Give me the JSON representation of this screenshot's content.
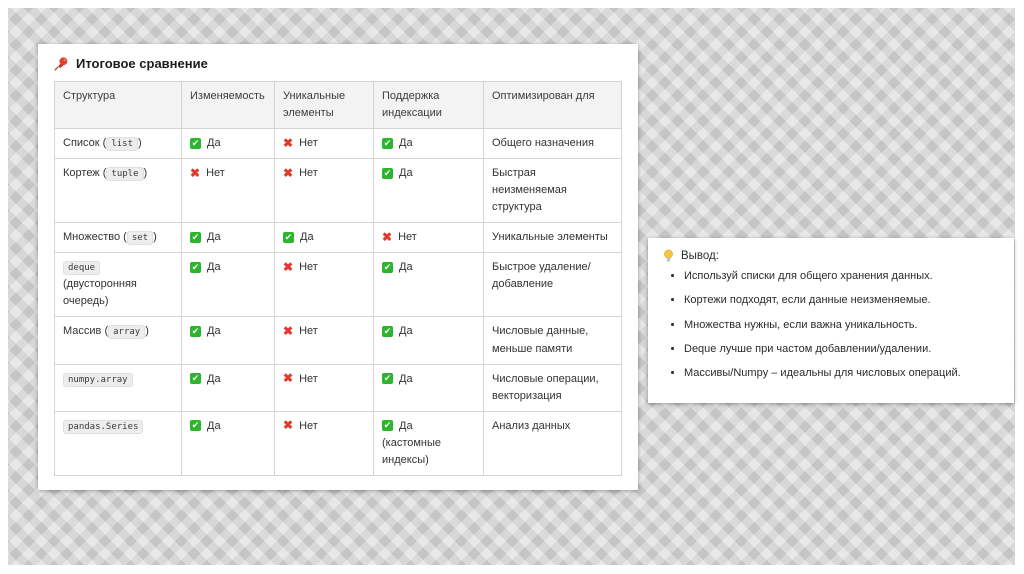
{
  "slide": {
    "colors": {
      "check_green": "#2eb52e",
      "cross_red": "#e03a2f",
      "header_bg": "#f3f3f3"
    },
    "icons": {
      "title_icon": "pushpin-icon",
      "conclusion_icon": "lightbulb-icon"
    },
    "title": "Итоговое сравнение",
    "table": {
      "columns": [
        "Структура",
        "Изменяемость",
        "Уникальные элементы",
        "Поддержка индексации",
        "Оптимизирован для"
      ],
      "rows": [
        {
          "structure": {
            "text": "Список",
            "code": "list",
            "paren": true,
            "note": ""
          },
          "mutable": {
            "value": "yes",
            "label": "Да"
          },
          "unique": {
            "value": "no",
            "label": "Нет"
          },
          "indexing": {
            "value": "yes",
            "label": "Да",
            "note": ""
          },
          "optimized": "Общего назначения"
        },
        {
          "structure": {
            "text": "Кортеж",
            "code": "tuple",
            "paren": true,
            "note": ""
          },
          "mutable": {
            "value": "no",
            "label": "Нет"
          },
          "unique": {
            "value": "no",
            "label": "Нет"
          },
          "indexing": {
            "value": "yes",
            "label": "Да",
            "note": ""
          },
          "optimized": "Быстрая неизменяемая структура"
        },
        {
          "structure": {
            "text": "Множество",
            "code": "set",
            "paren": true,
            "note": ""
          },
          "mutable": {
            "value": "yes",
            "label": "Да"
          },
          "unique": {
            "value": "yes",
            "label": "Да"
          },
          "indexing": {
            "value": "no",
            "label": "Нет",
            "note": ""
          },
          "optimized": "Уникальные элементы"
        },
        {
          "structure": {
            "text": "",
            "code": "deque",
            "paren": false,
            "note": "(двусторонняя очередь)"
          },
          "mutable": {
            "value": "yes",
            "label": "Да"
          },
          "unique": {
            "value": "no",
            "label": "Нет"
          },
          "indexing": {
            "value": "yes",
            "label": "Да",
            "note": ""
          },
          "optimized": "Быстрое удаление/ добавление"
        },
        {
          "structure": {
            "text": "Массив",
            "code": "array",
            "paren": true,
            "note": ""
          },
          "mutable": {
            "value": "yes",
            "label": "Да"
          },
          "unique": {
            "value": "no",
            "label": "Нет"
          },
          "indexing": {
            "value": "yes",
            "label": "Да",
            "note": ""
          },
          "optimized": "Числовые данные, меньше памяти"
        },
        {
          "structure": {
            "text": "",
            "code": "numpy.array",
            "paren": false,
            "note": ""
          },
          "mutable": {
            "value": "yes",
            "label": "Да"
          },
          "unique": {
            "value": "no",
            "label": "Нет"
          },
          "indexing": {
            "value": "yes",
            "label": "Да",
            "note": ""
          },
          "optimized": "Числовые операции, векторизация"
        },
        {
          "structure": {
            "text": "",
            "code": "pandas.Series",
            "paren": false,
            "note": ""
          },
          "mutable": {
            "value": "yes",
            "label": "Да"
          },
          "unique": {
            "value": "no",
            "label": "Нет"
          },
          "indexing": {
            "value": "yes",
            "label": "Да",
            "note": "(кастомные индексы)"
          },
          "optimized": "Анализ данных"
        }
      ]
    },
    "conclusion": {
      "title": "Вывод:",
      "bullets": [
        "Используй списки для общего хранения данных.",
        "Кортежи подходят, если данные неизменяемые.",
        "Множества нужны, если важна уникальность.",
        "Deque лучше при частом добавлении/удалении.",
        "Массивы/Numpy – идеальны для числовых операций."
      ]
    }
  }
}
